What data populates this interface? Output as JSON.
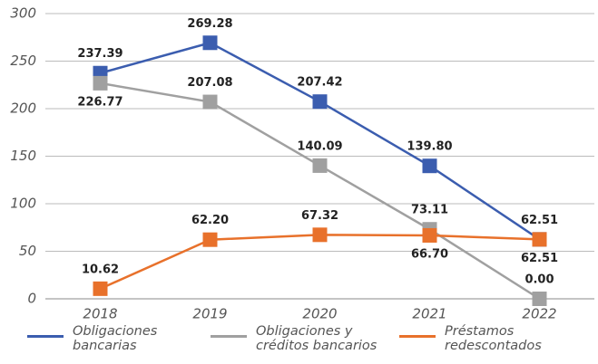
{
  "chart_data": {
    "type": "line",
    "categories": [
      "2018",
      "2019",
      "2020",
      "2021",
      "2022"
    ],
    "series": [
      {
        "name": "Obligaciones bancarias",
        "color": "#3b5daf",
        "values": [
          237.39,
          269.28,
          207.42,
          139.8,
          62.51
        ],
        "value_labels": [
          "237.39",
          "269.28",
          "207.42",
          "139.80",
          "62.51"
        ]
      },
      {
        "name": "Obligaciones y créditos bancarios",
        "color": "#a0a0a0",
        "values": [
          226.77,
          207.08,
          140.09,
          73.11,
          0
        ],
        "value_labels": [
          "226.77",
          "207.08",
          "140.09",
          "73.11",
          "0.00"
        ]
      },
      {
        "name": "Préstamos redescontados",
        "color": "#e8712b",
        "values": [
          10.62,
          62.2,
          67.32,
          66.7,
          62.51
        ],
        "value_labels": [
          "10.62",
          "62.20",
          "67.32",
          "66.70",
          "62.51"
        ]
      }
    ],
    "ylim": [
      0,
      300
    ],
    "yticks": [
      0,
      50,
      100,
      150,
      200,
      250,
      300
    ],
    "grid": true
  }
}
